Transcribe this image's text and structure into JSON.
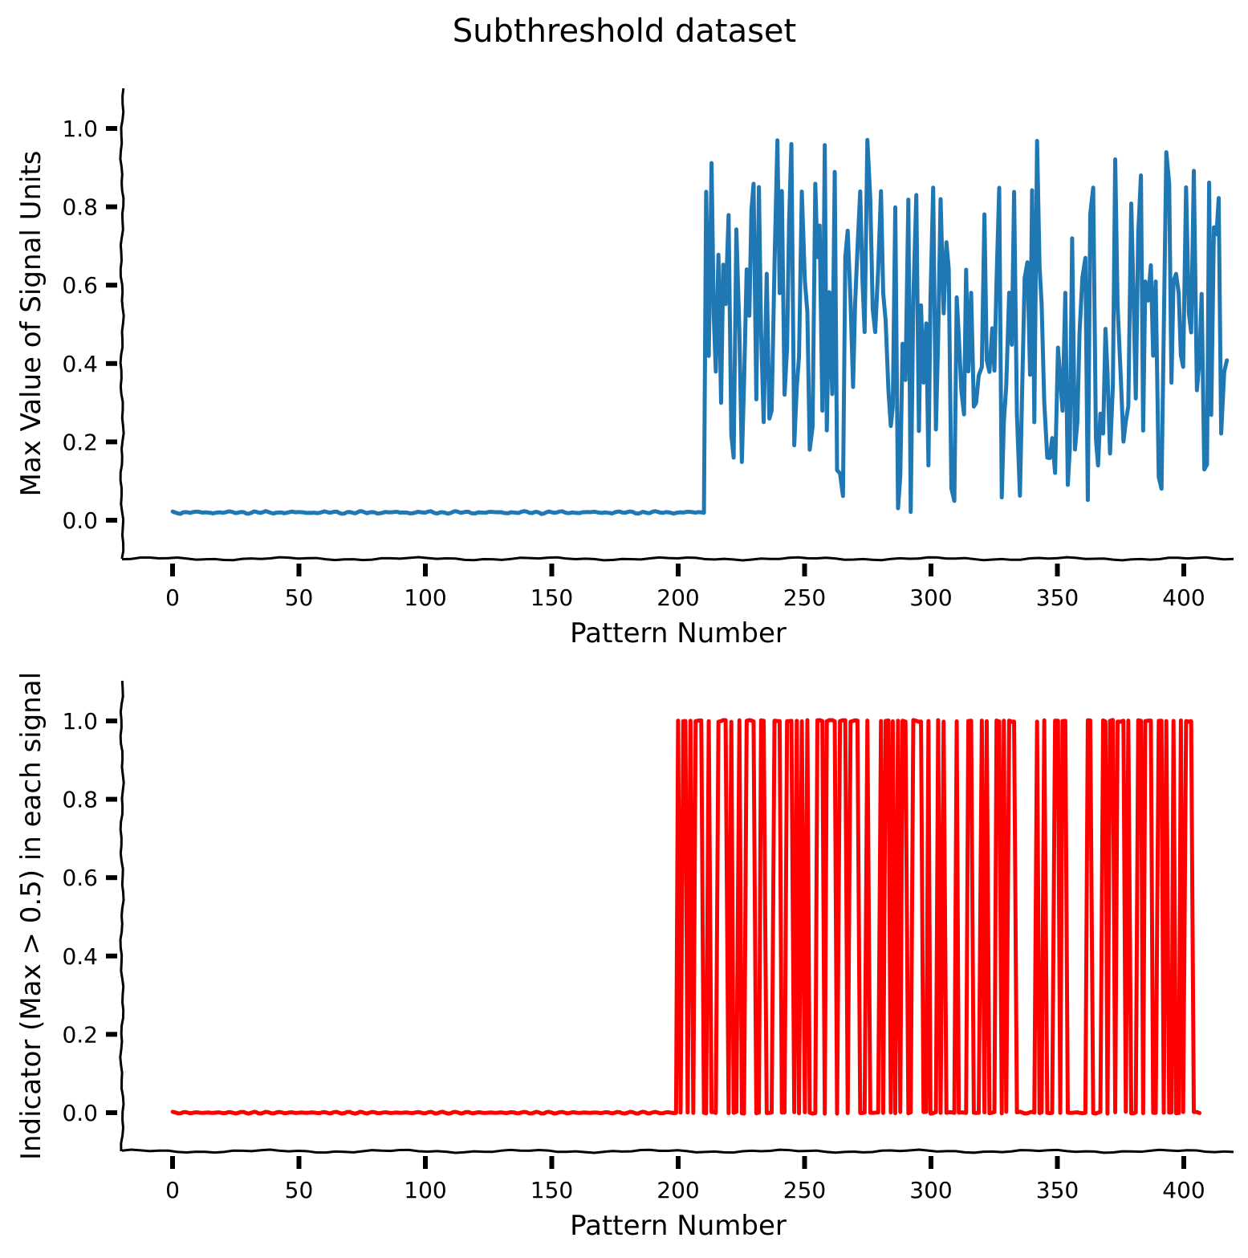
{
  "figure": {
    "title": "Subthreshold dataset"
  },
  "chart_data": [
    {
      "type": "line",
      "xlabel": "Pattern Number",
      "ylabel": "Max Value of Signal Units",
      "xlim": [
        -20,
        420
      ],
      "ylim": [
        -0.1,
        1.1
      ],
      "xticks": [
        0,
        50,
        100,
        150,
        200,
        250,
        300,
        350,
        400
      ],
      "yticks": [
        0.0,
        0.2,
        0.4,
        0.6,
        0.8,
        1.0
      ],
      "xtick_labels": [
        "0",
        "50",
        "100",
        "150",
        "200",
        "250",
        "300",
        "350",
        "400"
      ],
      "ytick_labels": [
        "0.0",
        "0.2",
        "0.4",
        "0.6",
        "0.8",
        "1.0"
      ],
      "grid": false,
      "color": "#1f77b4",
      "series": [
        {
          "x_start": 0,
          "x_step": 1,
          "values": [
            0.02,
            0.019,
            0.019,
            0.018,
            0.019,
            0.019,
            0.02,
            0.02,
            0.021,
            0.021,
            0.021,
            0.021,
            0.02,
            0.02,
            0.019,
            0.019,
            0.018,
            0.019,
            0.019,
            0.02,
            0.02,
            0.021,
            0.021,
            0.021,
            0.021,
            0.02,
            0.02,
            0.019,
            0.019,
            0.018,
            0.019,
            0.019,
            0.02,
            0.02,
            0.021,
            0.021,
            0.021,
            0.021,
            0.02,
            0.02,
            0.019,
            0.019,
            0.018,
            0.019,
            0.019,
            0.02,
            0.02,
            0.021,
            0.021,
            0.021,
            0.021,
            0.02,
            0.02,
            0.019,
            0.019,
            0.018,
            0.019,
            0.019,
            0.02,
            0.02,
            0.021,
            0.021,
            0.021,
            0.021,
            0.02,
            0.02,
            0.019,
            0.019,
            0.018,
            0.019,
            0.019,
            0.02,
            0.02,
            0.021,
            0.021,
            0.021,
            0.021,
            0.02,
            0.02,
            0.019,
            0.019,
            0.018,
            0.019,
            0.019,
            0.02,
            0.02,
            0.021,
            0.021,
            0.021,
            0.021,
            0.02,
            0.02,
            0.019,
            0.019,
            0.018,
            0.019,
            0.019,
            0.02,
            0.02,
            0.021,
            0.021,
            0.021,
            0.021,
            0.02,
            0.02,
            0.019,
            0.019,
            0.018,
            0.019,
            0.019,
            0.02,
            0.02,
            0.021,
            0.021,
            0.021,
            0.021,
            0.02,
            0.02,
            0.019,
            0.019,
            0.018,
            0.019,
            0.019,
            0.02,
            0.02,
            0.021,
            0.021,
            0.021,
            0.021,
            0.02,
            0.02,
            0.019,
            0.019,
            0.018,
            0.019,
            0.019,
            0.02,
            0.02,
            0.021,
            0.021,
            0.021,
            0.021,
            0.02,
            0.02,
            0.019,
            0.019,
            0.018,
            0.019,
            0.019,
            0.02,
            0.02,
            0.021,
            0.021,
            0.021,
            0.021,
            0.02,
            0.02,
            0.019,
            0.019,
            0.018,
            0.019,
            0.019,
            0.02,
            0.02,
            0.021,
            0.021,
            0.021,
            0.021,
            0.02,
            0.02,
            0.019,
            0.019,
            0.018,
            0.019,
            0.019,
            0.02,
            0.02,
            0.021,
            0.021,
            0.021,
            0.021,
            0.02,
            0.02,
            0.019,
            0.019,
            0.018,
            0.019,
            0.019,
            0.02,
            0.02,
            0.021,
            0.021,
            0.021,
            0.021,
            0.02,
            0.02,
            0.019,
            0.019,
            0.018,
            0.019,
            0.019,
            0.02,
            0.02,
            0.021,
            0.021,
            0.021,
            0.021,
            0.02,
            0.02,
            0.019,
            0.019,
            0.84,
            0.42,
            0.91,
            0.52,
            0.38,
            0.68,
            0.3,
            0.65,
            0.55,
            0.78,
            0.22,
            0.16,
            0.74,
            0.48,
            0.15,
            0.35,
            0.64,
            0.52,
            0.79,
            0.86,
            0.31,
            0.85,
            0.48,
            0.25,
            0.63,
            0.26,
            0.28,
            0.65,
            0.97,
            0.58,
            0.84,
            0.32,
            0.44,
            0.76,
            0.96,
            0.19,
            0.34,
            0.42,
            0.84,
            0.61,
            0.53,
            0.18,
            0.24,
            0.86,
            0.67,
            0.75,
            0.28,
            0.96,
            0.23,
            0.58,
            0.32,
            0.89,
            0.13,
            0.12,
            0.06,
            0.67,
            0.74,
            0.56,
            0.34,
            0.55,
            0.69,
            0.84,
            0.61,
            0.48,
            0.97,
            0.82,
            0.54,
            0.48,
            0.64,
            0.84,
            0.58,
            0.51,
            0.33,
            0.24,
            0.29,
            0.8,
            0.03,
            0.11,
            0.45,
            0.36,
            0.82,
            0.02,
            0.56,
            0.83,
            0.23,
            0.55,
            0.35,
            0.5,
            0.14,
            0.57,
            0.85,
            0.23,
            0.46,
            0.82,
            0.53,
            0.71,
            0.64,
            0.08,
            0.05,
            0.57,
            0.47,
            0.33,
            0.27,
            0.64,
            0.38,
            0.58,
            0.29,
            0.3,
            0.37,
            0.39,
            0.78,
            0.41,
            0.38,
            0.49,
            0.38,
            0.61,
            0.85,
            0.06,
            0.25,
            0.34,
            0.58,
            0.45,
            0.84,
            0.27,
            0.06,
            0.36,
            0.62,
            0.66,
            0.37,
            0.84,
            0.25,
            0.97,
            0.65,
            0.55,
            0.3,
            0.16,
            0.16,
            0.21,
            0.12,
            0.44,
            0.36,
            0.28,
            0.58,
            0.09,
            0.18,
            0.72,
            0.18,
            0.25,
            0.48,
            0.62,
            0.67,
            0.05,
            0.78,
            0.85,
            0.21,
            0.14,
            0.27,
            0.22,
            0.49,
            0.38,
            0.17,
            0.34,
            0.92,
            0.55,
            0.38,
            0.2,
            0.25,
            0.29,
            0.81,
            0.55,
            0.31,
            0.73,
            0.88,
            0.23,
            0.61,
            0.56,
            0.65,
            0.42,
            0.61,
            0.11,
            0.08,
            0.48,
            0.94,
            0.86,
            0.35,
            0.61,
            0.63,
            0.58,
            0.42,
            0.39,
            0.85,
            0.53,
            0.48,
            0.89,
            0.33,
            0.41,
            0.58,
            0.13,
            0.14,
            0.86,
            0.27,
            0.75,
            0.73,
            0.82,
            0.22,
            0.38,
            0.41
          ]
        }
      ]
    },
    {
      "type": "line",
      "xlabel": "Pattern Number",
      "ylabel": "Indicator (Max > 0.5) in each signal",
      "xlim": [
        -20,
        420
      ],
      "ylim": [
        -0.1,
        1.1
      ],
      "xticks": [
        0,
        50,
        100,
        150,
        200,
        250,
        300,
        350,
        400
      ],
      "yticks": [
        0.0,
        0.2,
        0.4,
        0.6,
        0.8,
        1.0
      ],
      "xtick_labels": [
        "0",
        "50",
        "100",
        "150",
        "200",
        "250",
        "300",
        "350",
        "400"
      ],
      "ytick_labels": [
        "0.0",
        "0.2",
        "0.4",
        "0.6",
        "0.8",
        "1.0"
      ],
      "grid": false,
      "color": "#ff0000",
      "series": [
        {
          "x_start": 0,
          "x_step": 1,
          "values": [
            0,
            0,
            0,
            0,
            0,
            0,
            0,
            0,
            0,
            0,
            0,
            0,
            0,
            0,
            0,
            0,
            0,
            0,
            0,
            0,
            0,
            0,
            0,
            0,
            0,
            0,
            0,
            0,
            0,
            0,
            0,
            0,
            0,
            0,
            0,
            0,
            0,
            0,
            0,
            0,
            0,
            0,
            0,
            0,
            0,
            0,
            0,
            0,
            0,
            0,
            0,
            0,
            0,
            0,
            0,
            0,
            0,
            0,
            0,
            0,
            0,
            0,
            0,
            0,
            0,
            0,
            0,
            0,
            0,
            0,
            0,
            0,
            0,
            0,
            0,
            0,
            0,
            0,
            0,
            0,
            0,
            0,
            0,
            0,
            0,
            0,
            0,
            0,
            0,
            0,
            0,
            0,
            0,
            0,
            0,
            0,
            0,
            0,
            0,
            0,
            0,
            0,
            0,
            0,
            0,
            0,
            0,
            0,
            0,
            0,
            0,
            0,
            0,
            0,
            0,
            0,
            0,
            0,
            0,
            0,
            0,
            0,
            0,
            0,
            0,
            0,
            0,
            0,
            0,
            0,
            0,
            0,
            0,
            0,
            0,
            0,
            0,
            0,
            0,
            0,
            0,
            0,
            0,
            0,
            0,
            0,
            0,
            0,
            0,
            0,
            0,
            0,
            0,
            0,
            0,
            0,
            0,
            0,
            0,
            0,
            0,
            0,
            0,
            0,
            0,
            0,
            0,
            0,
            0,
            0,
            0,
            0,
            0,
            0,
            0,
            0,
            0,
            0,
            0,
            0,
            0,
            0,
            0,
            0,
            0,
            0,
            0,
            0,
            0,
            0,
            0,
            0,
            0,
            0,
            0,
            0,
            0,
            0,
            0,
            0,
            1,
            0,
            1,
            1,
            0,
            1,
            0,
            1,
            1,
            1,
            0,
            0,
            1,
            0,
            0,
            0,
            1,
            1,
            1,
            1,
            0,
            1,
            0,
            0,
            1,
            0,
            0,
            1,
            1,
            1,
            1,
            0,
            0,
            1,
            1,
            0,
            0,
            0,
            1,
            1,
            1,
            0,
            0,
            1,
            1,
            1,
            0,
            1,
            0,
            1,
            0,
            1,
            0,
            0,
            0,
            1,
            1,
            1,
            0,
            1,
            1,
            1,
            1,
            0,
            1,
            1,
            1,
            0,
            1,
            1,
            1,
            1,
            0,
            0,
            0,
            1,
            0,
            0,
            0,
            0,
            1,
            0,
            1,
            1,
            0,
            1,
            0,
            1,
            0,
            1,
            1,
            0,
            0,
            1,
            1,
            1,
            1,
            0,
            0,
            1,
            0,
            0,
            0,
            1,
            0,
            1,
            0,
            0,
            0,
            0,
            1,
            0,
            0,
            0,
            0,
            1,
            1,
            0,
            0,
            0,
            1,
            0,
            1,
            0,
            0,
            0,
            1,
            1,
            0,
            1,
            0,
            1,
            1,
            1,
            0,
            0,
            0,
            0,
            0,
            0,
            0,
            0,
            1,
            0,
            0,
            1,
            0,
            0,
            0,
            1,
            1,
            0,
            1,
            1,
            0,
            0,
            0,
            0,
            0,
            0,
            0,
            0,
            1,
            1,
            0,
            0,
            0,
            0,
            1,
            1,
            0,
            1,
            1,
            0,
            1,
            1,
            1,
            0,
            1,
            0,
            0,
            0,
            1,
            1,
            0,
            1,
            1,
            1,
            0,
            0,
            1,
            1,
            0,
            1,
            0,
            0,
            1,
            0,
            0,
            1,
            0,
            1,
            1,
            1,
            0,
            0,
            0
          ]
        }
      ]
    }
  ]
}
